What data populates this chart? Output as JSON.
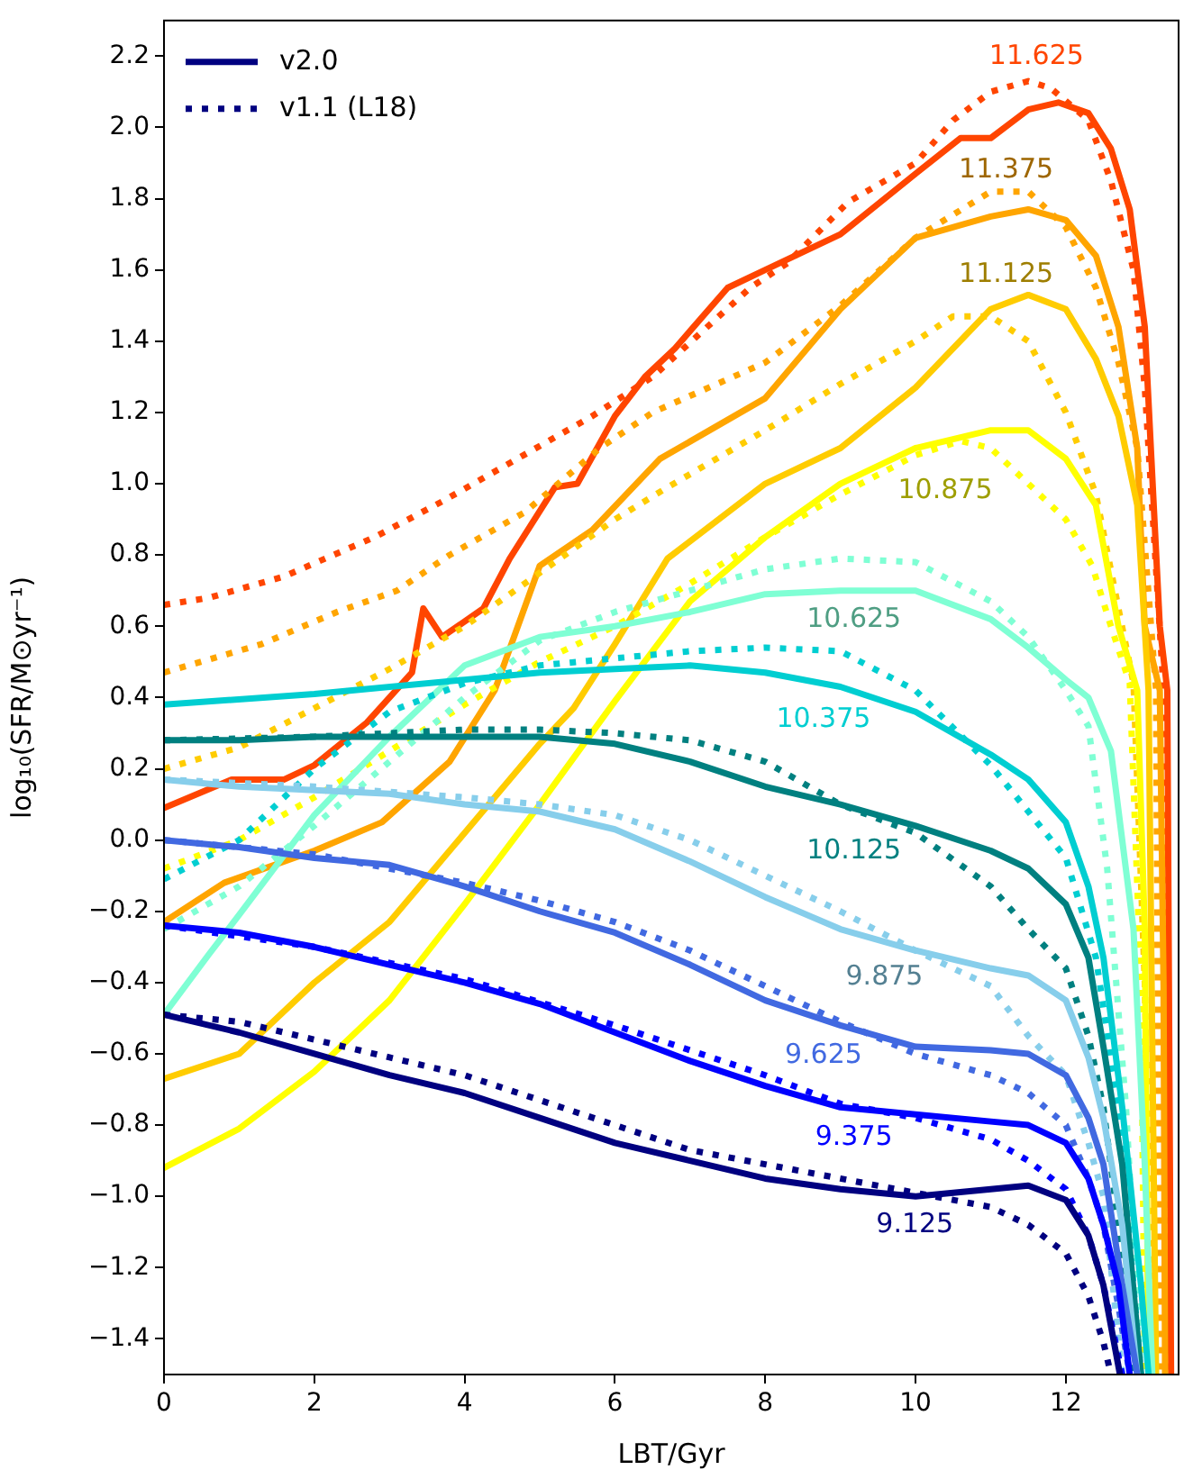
{
  "chart_data": {
    "type": "line",
    "xlabel": "LBT/Gyr",
    "ylabel": "log₁₀(SFR/M⊙yr⁻¹)",
    "xlim": [
      0,
      13.5
    ],
    "ylim": [
      -1.5,
      2.3
    ],
    "xticks": [
      0,
      2,
      4,
      6,
      8,
      10,
      12
    ],
    "yticks": [
      {
        "value": -1.4,
        "label": "−1.4"
      },
      {
        "value": -1.2,
        "label": "−1.2"
      },
      {
        "value": -1.0,
        "label": "−1.0"
      },
      {
        "value": -0.8,
        "label": "−0.8"
      },
      {
        "value": -0.6,
        "label": "−0.6"
      },
      {
        "value": -0.4,
        "label": "−0.4"
      },
      {
        "value": -0.2,
        "label": "−0.2"
      },
      {
        "value": 0,
        "label": "0.0"
      },
      {
        "value": 0.2,
        "label": "0.2"
      },
      {
        "value": 0.4,
        "label": "0.4"
      },
      {
        "value": 0.6,
        "label": "0.6"
      },
      {
        "value": 0.8,
        "label": "0.8"
      },
      {
        "value": 1.0,
        "label": "1.0"
      },
      {
        "value": 1.2,
        "label": "1.2"
      },
      {
        "value": 1.4,
        "label": "1.4"
      },
      {
        "value": 1.6,
        "label": "1.6"
      },
      {
        "value": 1.8,
        "label": "1.8"
      },
      {
        "value": 2.0,
        "label": "2.0"
      },
      {
        "value": 2.2,
        "label": "2.2"
      }
    ],
    "grid": false,
    "legend": "top left",
    "series": [
      {
        "name": "v2.0",
        "color": "#000080",
        "line_style": "solid",
        "x": [
          0,
          1,
          2,
          3,
          4,
          5,
          6,
          7,
          8,
          9,
          10,
          11,
          11.5,
          12,
          12.3,
          12.5,
          12.72
        ],
        "values": [
          -0.49,
          -0.54,
          -0.6,
          -0.66,
          -0.71,
          -0.78,
          -0.85,
          -0.9,
          -0.95,
          -0.98,
          -1.0,
          -0.98,
          -0.97,
          -1.01,
          -1.11,
          -1.25,
          -1.5
        ]
      },
      {
        "name": "v1.1 (L18)",
        "color": "#000080",
        "line_style": "dotted",
        "x": [
          0,
          1,
          2,
          3,
          4,
          5,
          6,
          7,
          8,
          9,
          10,
          11,
          11.5,
          12,
          12.3,
          12.5,
          12.6
        ],
        "values": [
          -0.49,
          -0.51,
          -0.56,
          -0.61,
          -0.66,
          -0.73,
          -0.8,
          -0.87,
          -0.91,
          -0.95,
          -0.99,
          -1.03,
          -1.08,
          -1.16,
          -1.28,
          -1.41,
          -1.5
        ]
      },
      {
        "color": "#0000ff",
        "line_style": "solid",
        "x": [
          0,
          1,
          2,
          3,
          4,
          5,
          6,
          7,
          8,
          9,
          10,
          11,
          11.5,
          12,
          12.3,
          12.5,
          12.7,
          12.85
        ],
        "values": [
          -0.24,
          -0.26,
          -0.3,
          -0.35,
          -0.4,
          -0.46,
          -0.54,
          -0.62,
          -0.69,
          -0.75,
          -0.77,
          -0.79,
          -0.8,
          -0.85,
          -0.95,
          -1.08,
          -1.25,
          -1.5
        ]
      },
      {
        "color": "#0000ff",
        "line_style": "dotted",
        "x": [
          0,
          2,
          4,
          6,
          7,
          8,
          9,
          10,
          11,
          11.5,
          12,
          12.3,
          12.5,
          12.75
        ],
        "values": [
          -0.24,
          -0.3,
          -0.39,
          -0.52,
          -0.59,
          -0.66,
          -0.74,
          -0.78,
          -0.84,
          -0.9,
          -0.98,
          -1.11,
          -1.25,
          -1.5
        ]
      },
      {
        "color": "#4169e1",
        "line_style": "solid",
        "x": [
          0,
          1,
          2,
          3,
          4,
          5,
          6,
          7,
          8,
          9,
          10,
          11,
          11.5,
          12,
          12.3,
          12.5,
          12.75,
          12.95
        ],
        "values": [
          0,
          -0.02,
          -0.05,
          -0.07,
          -0.13,
          -0.2,
          -0.26,
          -0.35,
          -0.45,
          -0.52,
          -0.58,
          -0.59,
          -0.6,
          -0.66,
          -0.78,
          -0.91,
          -1.25,
          -1.5
        ]
      },
      {
        "color": "#4169e1",
        "line_style": "dotted",
        "x": [
          0,
          2,
          4,
          5,
          6,
          7,
          8,
          9,
          10,
          11,
          11.5,
          12,
          12.3,
          12.5,
          12.7,
          12.85
        ],
        "values": [
          0,
          -0.04,
          -0.12,
          -0.17,
          -0.23,
          -0.31,
          -0.41,
          -0.51,
          -0.6,
          -0.66,
          -0.71,
          -0.8,
          -0.95,
          -1.08,
          -1.31,
          -1.5
        ]
      },
      {
        "color": "#87ceeb",
        "line_style": "solid",
        "x": [
          0,
          1,
          2,
          3,
          4,
          5,
          6,
          7,
          8,
          9,
          10,
          11,
          11.5,
          12,
          12.3,
          12.5,
          12.75,
          12.95
        ],
        "values": [
          0.17,
          0.15,
          0.14,
          0.13,
          0.1,
          0.08,
          0.03,
          -0.06,
          -0.16,
          -0.25,
          -0.31,
          -0.36,
          -0.38,
          -0.45,
          -0.61,
          -0.78,
          -1.08,
          -1.5
        ]
      },
      {
        "color": "#87ceeb",
        "line_style": "dotted",
        "x": [
          0,
          2,
          4,
          5,
          6,
          7,
          8,
          9,
          10,
          11,
          11.5,
          12,
          12.3,
          12.5,
          12.75
        ],
        "values": [
          0.17,
          0.15,
          0.12,
          0.1,
          0.07,
          0,
          -0.1,
          -0.2,
          -0.31,
          -0.41,
          -0.55,
          -0.66,
          -0.85,
          -1.0,
          -1.5
        ]
      },
      {
        "color": "#008080",
        "line_style": "solid",
        "x": [
          0,
          1,
          2,
          3,
          4,
          5,
          6,
          7,
          8,
          9,
          10,
          11,
          11.5,
          12,
          12.3,
          12.5,
          12.75,
          13.0
        ],
        "values": [
          0.28,
          0.28,
          0.29,
          0.29,
          0.29,
          0.29,
          0.27,
          0.22,
          0.15,
          0.1,
          0.04,
          -0.03,
          -0.08,
          -0.18,
          -0.33,
          -0.58,
          -0.91,
          -1.5
        ]
      },
      {
        "color": "#008080",
        "line_style": "dotted",
        "x": [
          0,
          2,
          4,
          5,
          6,
          7,
          8,
          9,
          10,
          11,
          11.5,
          12,
          12.3,
          12.5,
          12.7,
          12.9
        ],
        "values": [
          0.28,
          0.29,
          0.31,
          0.31,
          0.3,
          0.28,
          0.22,
          0.1,
          0.02,
          -0.13,
          -0.25,
          -0.36,
          -0.55,
          -0.75,
          -1.08,
          -1.5
        ]
      },
      {
        "color": "#00ced1",
        "line_style": "solid",
        "x": [
          0,
          2,
          4,
          5,
          6,
          7,
          8,
          9,
          10,
          11,
          11.5,
          12,
          12.3,
          12.5,
          12.75,
          13.0,
          13.1
        ],
        "values": [
          0.38,
          0.41,
          0.45,
          0.47,
          0.48,
          0.49,
          0.47,
          0.43,
          0.36,
          0.24,
          0.17,
          0.05,
          -0.13,
          -0.33,
          -0.75,
          -1.25,
          -1.5
        ]
      },
      {
        "color": "#00ced1",
        "line_style": "dotted",
        "x": [
          0,
          1,
          2,
          3,
          4,
          5,
          6,
          7,
          8,
          9,
          10,
          11,
          12,
          12.4,
          12.7,
          12.9,
          13.0
        ],
        "values": [
          -0.11,
          0,
          0.2,
          0.36,
          0.44,
          0.49,
          0.51,
          0.53,
          0.54,
          0.53,
          0.42,
          0.21,
          -0.05,
          -0.33,
          -0.75,
          -1.25,
          -1.5
        ]
      },
      {
        "color": "#7fffd4",
        "line_style": "solid",
        "x": [
          0,
          0.6,
          1,
          2,
          3,
          4,
          5,
          6,
          7,
          8,
          9,
          10,
          11,
          11.5,
          12,
          12.3,
          12.6,
          12.9,
          13.05,
          13.15
        ],
        "values": [
          -0.49,
          -0.32,
          -0.21,
          0.07,
          0.29,
          0.49,
          0.57,
          0.6,
          0.64,
          0.69,
          0.7,
          0.7,
          0.62,
          0.54,
          0.45,
          0.4,
          0.25,
          -0.25,
          -0.91,
          -1.5
        ]
      },
      {
        "color": "#7fffd4",
        "line_style": "dotted",
        "x": [
          0,
          1,
          2,
          3,
          4,
          5,
          6,
          7,
          8,
          9,
          10,
          11,
          11.5,
          12,
          12.3,
          12.55,
          12.8,
          13.0
        ],
        "values": [
          -0.25,
          -0.13,
          0.04,
          0.22,
          0.4,
          0.56,
          0.64,
          0.7,
          0.76,
          0.79,
          0.78,
          0.67,
          0.57,
          0.42,
          0.32,
          -0.08,
          -0.75,
          -1.5
        ]
      },
      {
        "color": "#ffff00",
        "line_style": "solid",
        "x": [
          0,
          1,
          2,
          3,
          4,
          5,
          6,
          7,
          8,
          9,
          10,
          11,
          11.5,
          12,
          12.4,
          12.7,
          12.95,
          13.05,
          13.1
        ],
        "values": [
          -0.92,
          -0.81,
          -0.65,
          -0.45,
          -0.18,
          0.1,
          0.39,
          0.67,
          0.85,
          1.0,
          1.1,
          1.15,
          1.15,
          1.07,
          0.94,
          0.6,
          0.42,
          -0.25,
          -1.5
        ]
      },
      {
        "color": "#ffff00",
        "line_style": "dotted",
        "x": [
          0,
          1,
          2,
          3,
          4,
          5,
          6,
          7,
          8,
          9,
          10,
          10.6,
          11,
          11.5,
          12,
          12.35,
          12.6,
          12.85,
          13.0,
          13.05
        ],
        "values": [
          -0.08,
          0,
          0.12,
          0.25,
          0.38,
          0.5,
          0.6,
          0.72,
          0.85,
          0.97,
          1.08,
          1.12,
          1.1,
          1.0,
          0.9,
          0.77,
          0.6,
          0.44,
          -0.41,
          -1.5
        ]
      },
      {
        "color": "#ffcc00",
        "line_style": "solid",
        "x": [
          0,
          1,
          2,
          3,
          4,
          5,
          5.45,
          6,
          6.7,
          8,
          9,
          10,
          11,
          11.5,
          12,
          12.4,
          12.7,
          12.95,
          13.1,
          13.15,
          13.2
        ],
        "values": [
          -0.67,
          -0.6,
          -0.4,
          -0.23,
          0.02,
          0.27,
          0.37,
          0.55,
          0.79,
          1.0,
          1.1,
          1.27,
          1.49,
          1.53,
          1.49,
          1.35,
          1.19,
          0.94,
          0.42,
          -0.58,
          -1.5
        ]
      },
      {
        "color": "#ffcc00",
        "line_style": "dotted",
        "x": [
          0,
          1,
          2,
          3,
          4,
          5,
          6,
          6.7,
          8,
          9,
          10,
          10.5,
          11,
          11.5,
          12,
          12.4,
          12.7,
          12.9,
          13.05,
          13.15
        ],
        "values": [
          0.2,
          0.26,
          0.37,
          0.48,
          0.6,
          0.75,
          0.9,
          0.99,
          1.15,
          1.28,
          1.4,
          1.47,
          1.47,
          1.4,
          1.2,
          0.97,
          0.65,
          0.44,
          -0.4,
          -1.5
        ]
      },
      {
        "color": "#ffa500",
        "line_style": "solid",
        "x": [
          0,
          0.8,
          2,
          2.9,
          3.8,
          4.4,
          5,
          5.7,
          6.6,
          8,
          9,
          10,
          11,
          11.5,
          12,
          12.4,
          12.7,
          12.95,
          13.05,
          13.25,
          13.3,
          13.32
        ],
        "values": [
          -0.23,
          -0.12,
          -0.03,
          0.05,
          0.22,
          0.42,
          0.77,
          0.87,
          1.07,
          1.24,
          1.49,
          1.69,
          1.75,
          1.77,
          1.74,
          1.64,
          1.44,
          1.1,
          0.6,
          0.42,
          -0.41,
          -1.5
        ]
      },
      {
        "color": "#ffa500",
        "line_style": "dotted",
        "x": [
          0,
          1.3,
          2.3,
          3.1,
          3.8,
          4.8,
          5.8,
          6.5,
          8,
          9,
          10,
          11,
          11.5,
          12,
          12.4,
          12.7,
          12.95,
          13.2,
          13.25
        ],
        "values": [
          0.47,
          0.55,
          0.64,
          0.7,
          0.8,
          0.92,
          1.1,
          1.2,
          1.34,
          1.5,
          1.69,
          1.82,
          1.82,
          1.72,
          1.55,
          1.34,
          1.1,
          0.42,
          -1.5
        ]
      },
      {
        "color": "#ff4500",
        "line_style": "solid",
        "x": [
          0,
          0.9,
          1.6,
          2,
          2.7,
          3.3,
          3.45,
          3.7,
          4.25,
          4.6,
          5.2,
          5.5,
          6.0,
          6.4,
          6.8,
          7.5,
          8,
          9,
          10,
          10.6,
          11,
          11.5,
          11.9,
          12.3,
          12.6,
          12.85,
          13.05,
          13.25,
          13.35,
          13.4
        ],
        "values": [
          0.09,
          0.17,
          0.17,
          0.21,
          0.33,
          0.47,
          0.65,
          0.57,
          0.65,
          0.79,
          0.99,
          1.0,
          1.19,
          1.3,
          1.38,
          1.55,
          1.6,
          1.7,
          1.87,
          1.97,
          1.97,
          2.05,
          2.07,
          2.04,
          1.94,
          1.77,
          1.44,
          0.6,
          0.42,
          -1.5
        ]
      },
      {
        "color": "#ff4500",
        "line_style": "dotted",
        "x": [
          0,
          0.6,
          1.6,
          2.8,
          3.7,
          4.7,
          5.7,
          6.5,
          7.8,
          8.3,
          9.1,
          10,
          10.5,
          11,
          11.5,
          11.8,
          12.3,
          12.6,
          12.9,
          13.05,
          13.3,
          13.35
        ],
        "values": [
          0.66,
          0.68,
          0.74,
          0.85,
          0.95,
          1.07,
          1.19,
          1.3,
          1.55,
          1.62,
          1.79,
          1.9,
          2.02,
          2.1,
          2.13,
          2.11,
          2.02,
          1.85,
          1.6,
          1.27,
          0.42,
          -1.5
        ]
      }
    ],
    "annotations": [
      "9.125",
      "9.375",
      "9.625",
      "9.875",
      "10.125",
      "10.375",
      "10.625",
      "10.875",
      "11.125",
      "11.375",
      "11.625"
    ]
  }
}
